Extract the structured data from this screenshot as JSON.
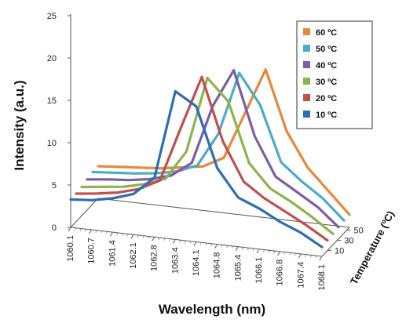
{
  "chart_data": {
    "type": "line",
    "title": "",
    "xlabel": "Wavelength (nm)",
    "ylabel": "Intensity (a.u.)",
    "zlabel": "Temperature (ºC)",
    "ylim": [
      0,
      25
    ],
    "yticks": [
      "0",
      "5",
      "10",
      "15",
      "20",
      "25"
    ],
    "categories": [
      "1060.1",
      "1060.7",
      "1061.4",
      "1062.1",
      "1062.8",
      "1063.4",
      "1064.1",
      "1064.8",
      "1065.4",
      "1066.1",
      "1066.8",
      "1067.4",
      "1068.1"
    ],
    "zticks": [
      "10",
      "30",
      "50"
    ],
    "legend_position": "top-right",
    "series": [
      {
        "name": "60 ºC",
        "color": "#e8873a",
        "values": [
          3.8,
          4.0,
          4.2,
          4.4,
          4.8,
          5.2,
          6.5,
          12.0,
          17.5,
          10.5,
          6.5,
          4.0,
          1.5
        ]
      },
      {
        "name": "50 ºC",
        "color": "#4bacc6",
        "values": [
          3.8,
          4.0,
          4.2,
          4.5,
          5.0,
          6.0,
          10.0,
          17.5,
          14.0,
          7.5,
          5.5,
          3.8,
          1.5
        ]
      },
      {
        "name": "40 ºC",
        "color": "#7b5ea7",
        "values": [
          3.6,
          3.9,
          4.1,
          4.5,
          5.2,
          7.0,
          14.0,
          18.5,
          11.0,
          6.5,
          5.0,
          3.5,
          1.4
        ]
      },
      {
        "name": "30 ºC",
        "color": "#8fb34b",
        "values": [
          3.4,
          3.7,
          4.0,
          4.6,
          5.5,
          9.0,
          18.0,
          15.5,
          8.5,
          5.8,
          4.5,
          3.0,
          1.3
        ]
      },
      {
        "name": "20 ºC",
        "color": "#c0504d",
        "values": [
          3.3,
          3.6,
          4.0,
          4.7,
          6.0,
          12.5,
          18.8,
          11.5,
          7.0,
          5.3,
          4.0,
          2.7,
          1.2
        ]
      },
      {
        "name": "10 ºC",
        "color": "#2e6db3",
        "values": [
          3.3,
          3.5,
          4.0,
          4.8,
          7.0,
          17.5,
          16.0,
          9.0,
          5.8,
          4.8,
          3.5,
          2.5,
          1.1
        ]
      }
    ]
  }
}
